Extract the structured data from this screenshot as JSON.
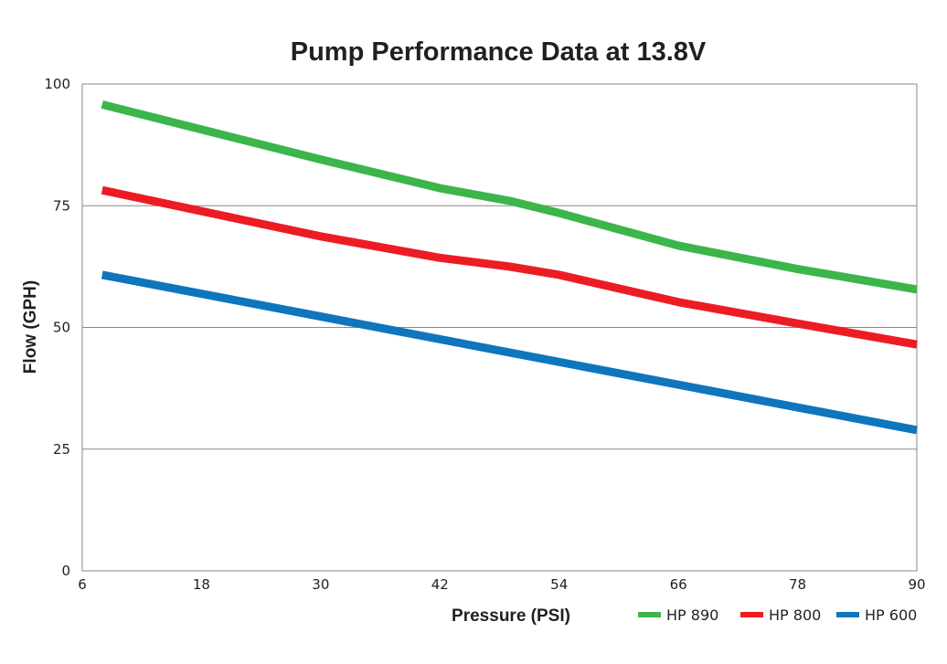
{
  "chart_data": {
    "type": "line",
    "title": "Pump Performance Data at 13.8V",
    "xlabel": "Pressure (PSI)",
    "ylabel": "Flow (GPH)",
    "xlim": [
      6,
      90
    ],
    "ylim": [
      0,
      100
    ],
    "xticks": [
      6,
      18,
      30,
      42,
      54,
      66,
      78,
      90
    ],
    "yticks": [
      0,
      25,
      50,
      75,
      100
    ],
    "grid": "horizontal",
    "legend": "bottom-right",
    "series": [
      {
        "name": "HP 890",
        "color": "#3cb54a",
        "x": [
          8,
          30,
          42,
          49,
          54,
          66,
          78,
          90
        ],
        "y": [
          95.8,
          84.5,
          78.6,
          76,
          73.5,
          66.8,
          62,
          57.8
        ]
      },
      {
        "name": "HP 800",
        "color": "#ed1c24",
        "x": [
          8,
          30,
          42,
          49,
          54,
          66,
          78,
          90
        ],
        "y": [
          78.2,
          68.7,
          64.3,
          62.5,
          60.8,
          55.2,
          50.8,
          46.5
        ]
      },
      {
        "name": "HP 600",
        "color": "#0f75bc",
        "x": [
          8,
          90
        ],
        "y": [
          60.8,
          28.9
        ]
      }
    ]
  }
}
